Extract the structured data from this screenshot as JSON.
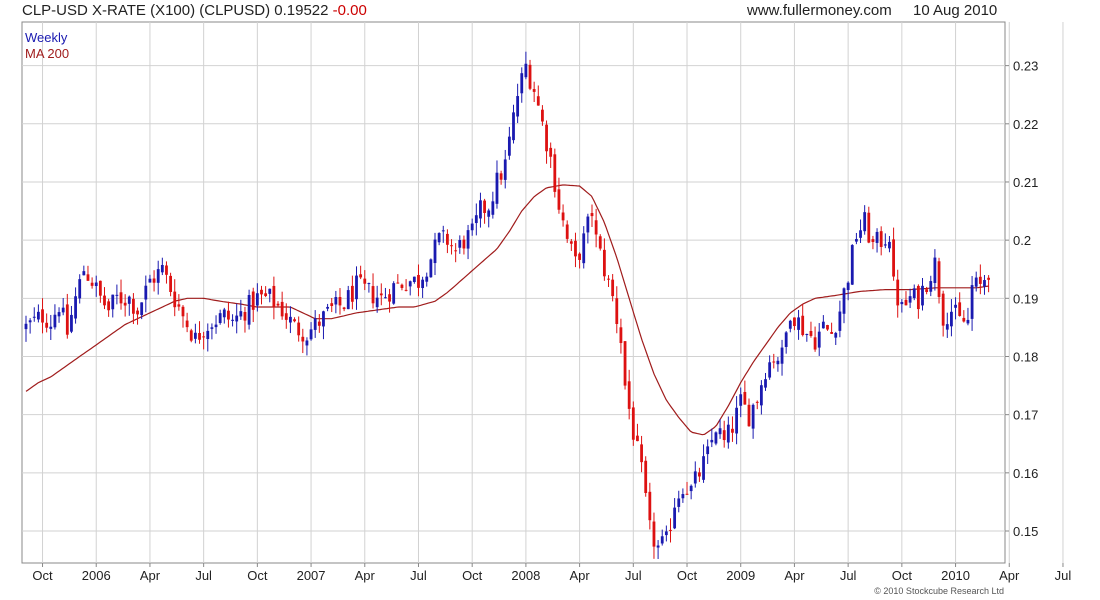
{
  "header": {
    "title": "CLP-USD X-RATE (X100) (CLPUSD) 0.19522",
    "change": "-0.00",
    "site": "www.fullermoney.com",
    "date": "10 Aug 2010"
  },
  "footer": {
    "credit": "© 2010 Stockcube Research Ltd"
  },
  "chart_data": {
    "type": "candlestick",
    "title": "CLP-USD X-RATE (X100) (CLPUSD)",
    "last": 0.19522,
    "change": -0.0,
    "frequency": "Weekly",
    "ylim": [
      0.1445,
      0.2375
    ],
    "y_ticks": [
      0.15,
      0.16,
      0.17,
      0.18,
      0.19,
      0.2,
      0.21,
      0.22,
      0.23
    ],
    "y_tick_labels": [
      "0.15",
      "0.16",
      "0.17",
      "0.18",
      "0.19",
      "0.2",
      "0.21",
      "0.22",
      "0.23"
    ],
    "x_tick_labels": [
      "Oct",
      "2006",
      "Apr",
      "Jul",
      "Oct",
      "2007",
      "Apr",
      "Jul",
      "Oct",
      "2008",
      "Apr",
      "Jul",
      "Oct",
      "2009",
      "Apr",
      "Jul",
      "Oct",
      "2010",
      "Apr",
      "Jul"
    ],
    "x_tick_weeks": [
      4,
      17,
      30,
      43,
      56,
      69,
      82,
      95,
      108,
      121,
      134,
      147,
      160,
      173,
      186,
      199,
      212,
      225,
      238,
      251
    ],
    "grid": true,
    "legend": {
      "position": "top-left",
      "items": [
        {
          "name": "Weekly",
          "color": "#1a1ab0"
        },
        {
          "name": "MA 200",
          "color": "#a01c1c"
        }
      ]
    },
    "colors": {
      "up": "#1a1ab0",
      "down": "#dd1111",
      "ma": "#a01c1c",
      "grid": "#d2d2d2"
    },
    "close_series": [
      [
        0,
        0.185
      ],
      [
        4,
        0.187
      ],
      [
        6,
        0.186
      ],
      [
        8,
        0.189
      ],
      [
        10,
        0.184
      ],
      [
        12,
        0.19
      ],
      [
        14,
        0.195
      ],
      [
        16,
        0.193
      ],
      [
        18,
        0.19
      ],
      [
        20,
        0.188
      ],
      [
        22,
        0.19
      ],
      [
        25,
        0.19
      ],
      [
        27,
        0.188
      ],
      [
        30,
        0.193
      ],
      [
        33,
        0.195
      ],
      [
        36,
        0.19
      ],
      [
        38,
        0.187
      ],
      [
        41,
        0.183
      ],
      [
        43,
        0.185
      ],
      [
        45,
        0.186
      ],
      [
        48,
        0.187
      ],
      [
        50,
        0.186
      ],
      [
        53,
        0.188
      ],
      [
        56,
        0.19
      ],
      [
        59,
        0.19
      ],
      [
        62,
        0.188
      ],
      [
        65,
        0.185
      ],
      [
        68,
        0.184
      ],
      [
        71,
        0.186
      ],
      [
        74,
        0.188
      ],
      [
        77,
        0.189
      ],
      [
        80,
        0.192
      ],
      [
        83,
        0.191
      ],
      [
        86,
        0.19
      ],
      [
        89,
        0.192
      ],
      [
        92,
        0.193
      ],
      [
        95,
        0.193
      ],
      [
        98,
        0.197
      ],
      [
        100,
        0.2
      ],
      [
        102,
        0.2
      ],
      [
        104,
        0.198
      ],
      [
        106,
        0.2
      ],
      [
        108,
        0.201
      ],
      [
        110,
        0.205
      ],
      [
        112,
        0.206
      ],
      [
        114,
        0.21
      ],
      [
        116,
        0.213
      ],
      [
        118,
        0.221
      ],
      [
        119,
        0.225
      ],
      [
        121,
        0.23
      ],
      [
        123,
        0.226
      ],
      [
        125,
        0.22
      ],
      [
        127,
        0.214
      ],
      [
        129,
        0.206
      ],
      [
        131,
        0.2
      ],
      [
        133,
        0.196
      ],
      [
        135,
        0.2
      ],
      [
        137,
        0.205
      ],
      [
        138,
        0.2
      ],
      [
        140,
        0.195
      ],
      [
        142,
        0.19
      ],
      [
        144,
        0.183
      ],
      [
        145,
        0.175
      ],
      [
        147,
        0.167
      ],
      [
        149,
        0.16
      ],
      [
        151,
        0.15
      ],
      [
        153,
        0.147
      ],
      [
        155,
        0.148
      ],
      [
        157,
        0.155
      ],
      [
        159,
        0.158
      ],
      [
        161,
        0.157
      ],
      [
        163,
        0.16
      ],
      [
        165,
        0.163
      ],
      [
        167,
        0.168
      ],
      [
        169,
        0.165
      ],
      [
        171,
        0.168
      ],
      [
        173,
        0.172
      ],
      [
        175,
        0.17
      ],
      [
        177,
        0.173
      ],
      [
        179,
        0.178
      ],
      [
        181,
        0.18
      ],
      [
        183,
        0.18
      ],
      [
        185,
        0.188
      ],
      [
        187,
        0.186
      ],
      [
        189,
        0.184
      ],
      [
        191,
        0.183
      ],
      [
        193,
        0.185
      ],
      [
        195,
        0.184
      ],
      [
        197,
        0.188
      ],
      [
        199,
        0.194
      ],
      [
        201,
        0.201
      ],
      [
        203,
        0.203
      ],
      [
        205,
        0.199
      ],
      [
        207,
        0.2
      ],
      [
        209,
        0.201
      ],
      [
        210,
        0.192
      ],
      [
        212,
        0.188
      ],
      [
        214,
        0.19
      ],
      [
        216,
        0.19
      ],
      [
        218,
        0.193
      ],
      [
        220,
        0.196
      ],
      [
        222,
        0.187
      ],
      [
        224,
        0.188
      ],
      [
        226,
        0.186
      ],
      [
        228,
        0.186
      ],
      [
        229,
        0.192
      ],
      [
        231,
        0.192
      ],
      [
        233,
        0.195
      ]
    ],
    "ma200_series": [
      [
        0,
        0.174
      ],
      [
        3,
        0.1755
      ],
      [
        6,
        0.1765
      ],
      [
        9,
        0.178
      ],
      [
        12,
        0.1795
      ],
      [
        15,
        0.181
      ],
      [
        18,
        0.1825
      ],
      [
        21,
        0.184
      ],
      [
        24,
        0.1855
      ],
      [
        27,
        0.1865
      ],
      [
        30,
        0.1875
      ],
      [
        33,
        0.1885
      ],
      [
        36,
        0.1895
      ],
      [
        39,
        0.19
      ],
      [
        43,
        0.19
      ],
      [
        47,
        0.1895
      ],
      [
        52,
        0.189
      ],
      [
        56,
        0.1885
      ],
      [
        60,
        0.1885
      ],
      [
        64,
        0.1885
      ],
      [
        67,
        0.1875
      ],
      [
        70,
        0.1865
      ],
      [
        74,
        0.1865
      ],
      [
        77,
        0.187
      ],
      [
        80,
        0.1875
      ],
      [
        85,
        0.188
      ],
      [
        90,
        0.1885
      ],
      [
        94,
        0.1885
      ],
      [
        99,
        0.1895
      ],
      [
        102,
        0.191
      ],
      [
        106,
        0.1935
      ],
      [
        110,
        0.196
      ],
      [
        114,
        0.1985
      ],
      [
        117,
        0.2015
      ],
      [
        120,
        0.205
      ],
      [
        123,
        0.2075
      ],
      [
        126,
        0.209
      ],
      [
        130,
        0.2095
      ],
      [
        134,
        0.2093
      ],
      [
        137,
        0.2075
      ],
      [
        140,
        0.203
      ],
      [
        143,
        0.197
      ],
      [
        146,
        0.19
      ],
      [
        149,
        0.183
      ],
      [
        152,
        0.177
      ],
      [
        155,
        0.1725
      ],
      [
        158,
        0.1695
      ],
      [
        161,
        0.167
      ],
      [
        164,
        0.1665
      ],
      [
        167,
        0.168
      ],
      [
        170,
        0.1715
      ],
      [
        173,
        0.1755
      ],
      [
        176,
        0.179
      ],
      [
        179,
        0.182
      ],
      [
        182,
        0.185
      ],
      [
        185,
        0.1875
      ],
      [
        188,
        0.189
      ],
      [
        191,
        0.19
      ],
      [
        196,
        0.1905
      ],
      [
        202,
        0.1912
      ],
      [
        208,
        0.1915
      ],
      [
        214,
        0.1915
      ],
      [
        220,
        0.1918
      ],
      [
        226,
        0.1918
      ],
      [
        230,
        0.1918
      ],
      [
        233,
        0.1921
      ]
    ]
  }
}
